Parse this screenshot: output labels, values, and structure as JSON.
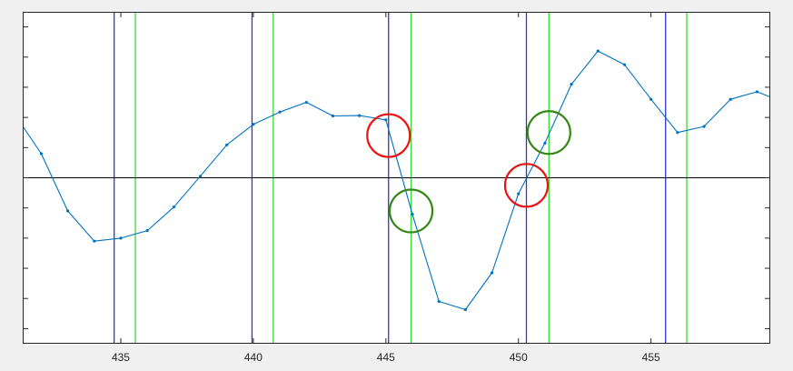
{
  "chart_data": {
    "type": "line",
    "title": "",
    "xlabel": "",
    "ylabel": "",
    "xlim": [
      431.3,
      459.5
    ],
    "ylim": [
      -5.5,
      5.5
    ],
    "xticks": [
      435,
      440,
      445,
      450,
      455
    ],
    "xtick_labels": [
      "435",
      "440",
      "445",
      "450",
      "455"
    ],
    "yticks": [
      -5,
      -4,
      -3,
      -2,
      -1,
      0,
      1,
      2,
      3,
      4,
      5
    ],
    "y_tick_labels_shown": false,
    "grid": false,
    "legend": "none",
    "series": [
      {
        "color": "#0072BD",
        "marker": "dot",
        "x": [
          431,
          432,
          433,
          434,
          435,
          436,
          437,
          438,
          439,
          440,
          441,
          442,
          443,
          444,
          445,
          446,
          447,
          448,
          449,
          450,
          451,
          452,
          453,
          454,
          455,
          456,
          457,
          458,
          459,
          460
        ],
        "y": [
          2.1,
          0.8,
          -1.1,
          -2.1,
          -2.0,
          -1.75,
          -0.97,
          0.05,
          1.09,
          1.77,
          2.18,
          2.5,
          2.05,
          2.06,
          1.92,
          -1.21,
          -4.1,
          -4.37,
          -3.15,
          -0.53,
          1.15,
          3.1,
          4.2,
          3.75,
          2.6,
          1.5,
          1.7,
          2.6,
          2.85,
          2.5
        ]
      }
    ],
    "reference_lines": {
      "horizontal": [
        {
          "y": 0,
          "color": "#000000"
        }
      ],
      "vertical": [
        {
          "x": 434.75,
          "color": "#3333cc"
        },
        {
          "x": 435.55,
          "color": "#33dd33"
        },
        {
          "x": 439.95,
          "color": "#3333cc"
        },
        {
          "x": 440.75,
          "color": "#33dd33"
        },
        {
          "x": 445.1,
          "color": "#3333cc"
        },
        {
          "x": 445.95,
          "color": "#33dd33"
        },
        {
          "x": 450.3,
          "color": "#3333cc"
        },
        {
          "x": 451.15,
          "color": "#33dd33"
        },
        {
          "x": 455.55,
          "color": "#3333cc"
        },
        {
          "x": 456.35,
          "color": "#33dd33"
        }
      ]
    },
    "annotations": [
      {
        "shape": "circle",
        "color": "#ee1111",
        "x": 445.1,
        "y": 1.4
      },
      {
        "shape": "circle",
        "color": "#338811",
        "x": 445.95,
        "y": -1.1
      },
      {
        "shape": "circle",
        "color": "#ee1111",
        "x": 450.3,
        "y": -0.25
      },
      {
        "shape": "circle",
        "color": "#338811",
        "x": 451.15,
        "y": 1.5
      }
    ]
  },
  "colors": {
    "figure_background": "#f0f0f0",
    "axes_background": "#ffffff",
    "axes_edge": "#262626"
  }
}
